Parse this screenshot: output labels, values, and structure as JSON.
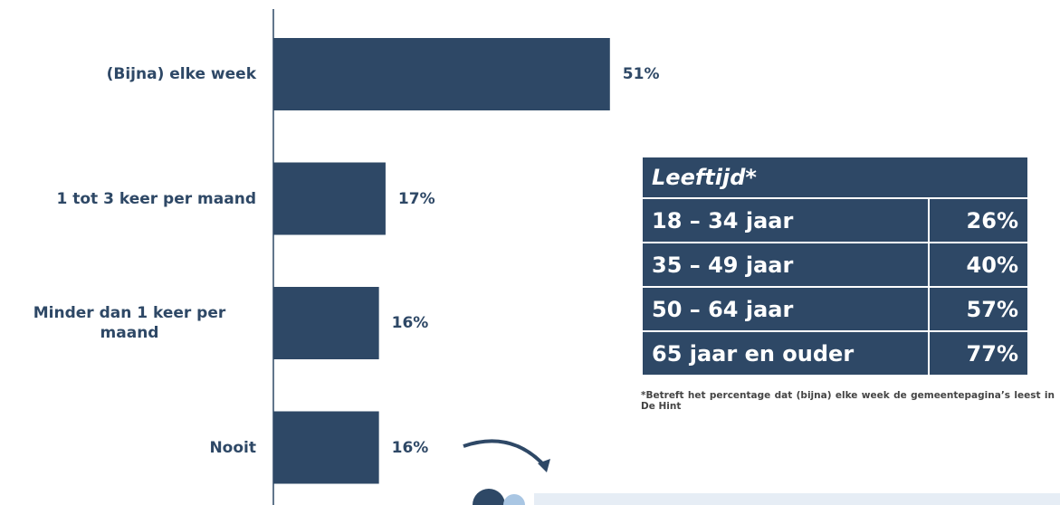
{
  "chart_data": {
    "type": "bar",
    "orientation": "horizontal",
    "categories": [
      "(Bijna) elke week",
      "1 tot 3 keer per maand",
      "Minder dan 1 keer per maand",
      "Nooit"
    ],
    "values": [
      51,
      17,
      16,
      16
    ],
    "value_labels": [
      "51%",
      "17%",
      "16%",
      "16%"
    ],
    "color": "#2e4866"
  },
  "table": {
    "title": "Leeftijd*",
    "rows": [
      [
        "18 – 34 jaar",
        "26%"
      ],
      [
        "35 – 49 jaar",
        "40%"
      ],
      [
        "50 – 64 jaar",
        "57%"
      ],
      [
        "65 jaar en ouder",
        "77%"
      ]
    ]
  },
  "footnote": "*Betreft het percentage dat (bijna) elke week de gemeentepagina’s leest in De Hint"
}
